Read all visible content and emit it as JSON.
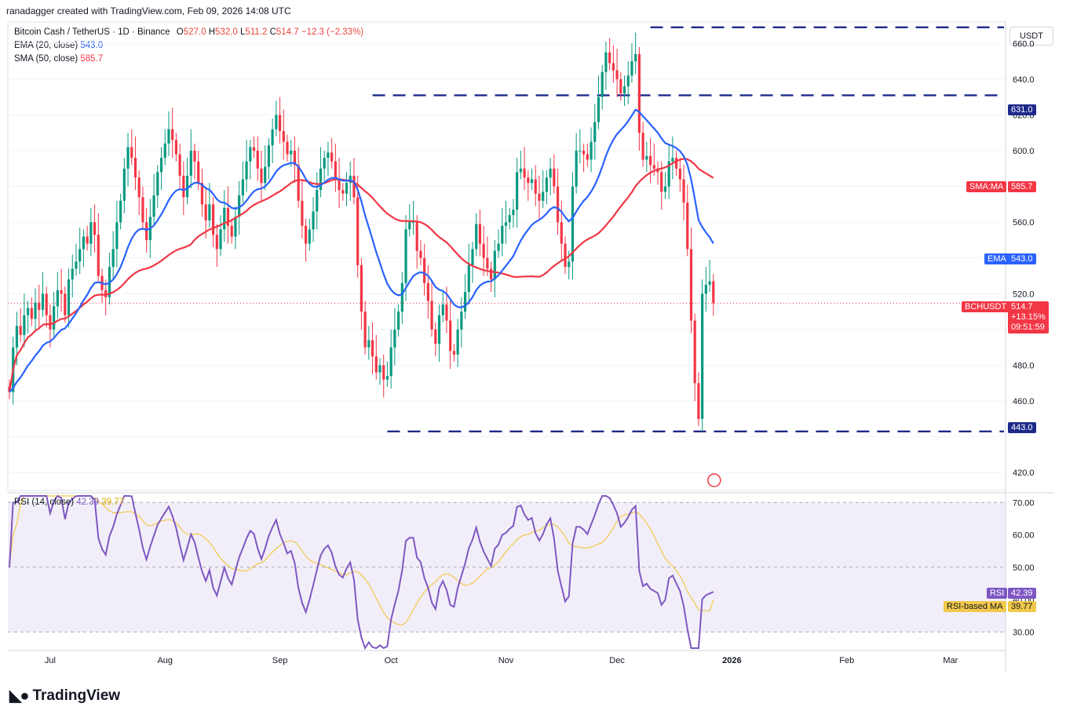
{
  "header": {
    "credit": "ranadagger created with TradingView.com, Feb 09, 2026 14:08 UTC"
  },
  "legend": {
    "symbol": "Bitcoin Cash / TetherUS · 1D · Binance",
    "o_label": "O",
    "o_val": "527.0",
    "h_label": "H",
    "h_val": "532.0",
    "l_label": "L",
    "l_val": "511.2",
    "c_label": "C",
    "c_val": "514.7",
    "change": "−12.3 (−2.33%)",
    "ema_label": "EMA (20, close)",
    "ema_val": "543.0",
    "sma_label": "SMA (50, close)",
    "sma_val": "585.7"
  },
  "rsi_legend": {
    "label": "RSI (14, close)",
    "rsi_val": "42.39",
    "ma_val": "39.77"
  },
  "currency_button": "USDT",
  "price_tags": {
    "sma": {
      "label": "SMA:MA",
      "value": "585.7"
    },
    "ema": {
      "label": "EMA",
      "value": "543.0"
    },
    "last": {
      "label": "BCHUSDT",
      "value": "514.7",
      "change": "+13.15%",
      "countdown": "09:51:59"
    },
    "r1": "631.0",
    "s1": "443.0"
  },
  "rsi_tags": {
    "rsi_label": "RSI",
    "rsi_value": "42.39",
    "ma_label": "RSI-based MA",
    "ma_value": "39.77"
  },
  "branding": {
    "name": "TradingView"
  },
  "colors": {
    "up": "#089981",
    "down": "#f23645",
    "ema": "#2962ff",
    "sma": "#f23645",
    "rsi": "#7e57c2",
    "rsi_ma": "#f2c84b",
    "levels": "#1e2a8a"
  },
  "chart_data": {
    "type": "candlestick",
    "title": "Bitcoin Cash / TetherUS · 1D · Binance",
    "y_axis": {
      "ticks": [
        420,
        440,
        460,
        480,
        500,
        520,
        540,
        560,
        580,
        600,
        620,
        640,
        660
      ],
      "tick_labels": [
        "420.0",
        "",
        "460.0",
        "480.0",
        "",
        "520.0",
        "",
        "560.0",
        "580.0",
        "600.0",
        "620.0",
        "640.0",
        "660.0"
      ]
    },
    "x_axis": {
      "labels": [
        "Jul",
        "Aug",
        "Sep",
        "Oct",
        "Nov",
        "Dec",
        "2026",
        "Feb",
        "Mar"
      ],
      "label_dates": [
        "2025-07-01",
        "2025-08-01",
        "2025-09-01",
        "2025-10-01",
        "2025-11-01",
        "2025-12-01",
        "2026-01-01",
        "2026-02-01",
        "2026-03-01"
      ]
    },
    "first_date": "2025-06-20",
    "last_date": "2026-02-09",
    "horizontal_levels": [
      {
        "value": 669,
        "from": "2025-12-10",
        "to": "2026-03-12"
      },
      {
        "value": 631,
        "from": "2025-09-26",
        "to": "2026-03-12"
      },
      {
        "value": 443,
        "from": "2025-09-30",
        "to": "2026-03-12"
      }
    ],
    "closes": [
      465,
      490,
      502,
      497,
      508,
      512,
      506,
      515,
      511,
      520,
      508,
      500,
      513,
      522,
      520,
      508,
      528,
      534,
      538,
      545,
      552,
      548,
      560,
      553,
      530,
      522,
      518,
      535,
      545,
      560,
      572,
      590,
      602,
      596,
      585,
      574,
      560,
      550,
      563,
      575,
      588,
      596,
      604,
      612,
      606,
      598,
      586,
      574,
      586,
      600,
      594,
      582,
      570,
      561,
      570,
      553,
      545,
      556,
      568,
      558,
      552,
      563,
      575,
      584,
      594,
      602,
      600,
      590,
      582,
      591,
      603,
      612,
      620,
      611,
      605,
      598,
      600,
      592,
      572,
      558,
      548,
      556,
      566,
      578,
      590,
      596,
      599,
      594,
      584,
      578,
      576,
      582,
      586,
      574,
      536,
      510,
      490,
      494,
      485,
      476,
      480,
      472,
      474,
      490,
      500,
      510,
      526,
      556,
      560,
      560,
      544,
      540,
      526,
      516,
      500,
      492,
      508,
      514,
      505,
      488,
      486,
      500,
      510,
      521,
      536,
      545,
      559,
      548,
      540,
      534,
      528,
      544,
      548,
      558,
      560,
      564,
      567,
      588,
      590,
      585,
      582,
      584,
      576,
      572,
      577,
      585,
      590,
      580,
      560,
      548,
      535,
      538,
      580,
      600,
      600,
      598,
      595,
      605,
      616,
      630,
      644,
      655,
      649,
      645,
      640,
      632,
      636,
      642,
      650,
      654,
      610,
      595,
      597,
      592,
      590,
      588,
      577,
      580,
      594,
      596,
      590,
      584,
      571,
      545,
      505,
      470,
      450,
      520,
      525,
      527,
      514.7
    ],
    "opens": [
      468,
      465,
      490,
      502,
      497,
      508,
      512,
      506,
      515,
      511,
      520,
      508,
      500,
      513,
      522,
      520,
      508,
      528,
      534,
      538,
      545,
      552,
      548,
      560,
      553,
      530,
      522,
      518,
      535,
      545,
      560,
      572,
      590,
      602,
      596,
      585,
      574,
      560,
      550,
      563,
      575,
      588,
      596,
      604,
      612,
      606,
      598,
      586,
      574,
      586,
      600,
      594,
      582,
      570,
      561,
      570,
      553,
      545,
      556,
      568,
      558,
      552,
      563,
      575,
      584,
      594,
      602,
      600,
      590,
      582,
      591,
      603,
      612,
      620,
      611,
      605,
      598,
      600,
      592,
      572,
      558,
      548,
      556,
      566,
      578,
      590,
      596,
      599,
      594,
      584,
      578,
      576,
      582,
      586,
      574,
      536,
      510,
      490,
      494,
      485,
      476,
      480,
      472,
      474,
      490,
      500,
      510,
      526,
      556,
      560,
      560,
      544,
      540,
      526,
      516,
      500,
      492,
      508,
      514,
      505,
      488,
      486,
      500,
      510,
      521,
      536,
      545,
      559,
      548,
      540,
      534,
      528,
      544,
      548,
      558,
      560,
      564,
      567,
      588,
      590,
      585,
      582,
      584,
      576,
      572,
      577,
      585,
      590,
      580,
      560,
      548,
      535,
      538,
      580,
      600,
      600,
      598,
      595,
      605,
      616,
      630,
      644,
      655,
      649,
      645,
      640,
      632,
      636,
      642,
      650,
      654,
      610,
      595,
      597,
      592,
      590,
      588,
      577,
      580,
      594,
      596,
      590,
      584,
      571,
      545,
      505,
      470,
      450,
      520,
      525,
      527
    ],
    "series": [
      {
        "name": "EMA (20, close)",
        "last": 543.0
      },
      {
        "name": "SMA (50, close)",
        "last": 585.7
      }
    ],
    "rsi": {
      "ylim": [
        25,
        72
      ],
      "tick_labels": [
        "30.00",
        "40.00",
        "50.00",
        "60.00",
        "70.00"
      ],
      "ticks": [
        30,
        40,
        50,
        60,
        70
      ],
      "band": [
        30,
        70
      ],
      "last_rsi": 42.39,
      "last_ma": 39.77
    },
    "ylim": [
      410,
      672
    ]
  }
}
